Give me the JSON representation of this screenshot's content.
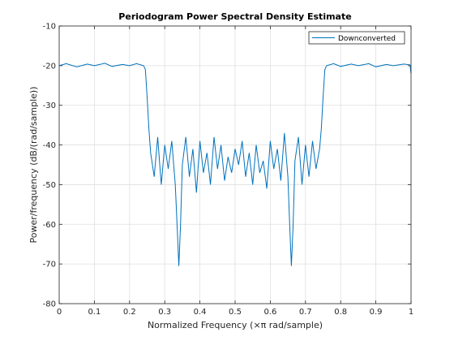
{
  "chart_data": {
    "type": "line",
    "title": "Periodogram Power Spectral Density Estimate",
    "xlabel": "Normalized Frequency  (×π rad/sample)",
    "ylabel": "Power/frequency (dB/(rad/sample))",
    "xlim": [
      0,
      1
    ],
    "ylim": [
      -80,
      -10
    ],
    "xticks": [
      "0",
      "0.1",
      "0.2",
      "0.3",
      "0.4",
      "0.5",
      "0.6",
      "0.7",
      "0.8",
      "0.9",
      "1"
    ],
    "yticks": [
      "-80",
      "-70",
      "-60",
      "-50",
      "-40",
      "-30",
      "-20",
      "-10"
    ],
    "grid": true,
    "legend_position": "top-right",
    "series": [
      {
        "name": "Downconverted",
        "color": "#0072bd",
        "x": [
          0,
          0.02,
          0.05,
          0.08,
          0.1,
          0.13,
          0.15,
          0.18,
          0.2,
          0.22,
          0.24,
          0.245,
          0.25,
          0.255,
          0.26,
          0.27,
          0.28,
          0.29,
          0.3,
          0.31,
          0.32,
          0.33,
          0.335,
          0.34,
          0.345,
          0.35,
          0.36,
          0.37,
          0.38,
          0.39,
          0.4,
          0.41,
          0.42,
          0.43,
          0.44,
          0.45,
          0.46,
          0.47,
          0.48,
          0.49,
          0.5,
          0.51,
          0.52,
          0.53,
          0.54,
          0.55,
          0.56,
          0.57,
          0.58,
          0.59,
          0.6,
          0.61,
          0.62,
          0.63,
          0.64,
          0.65,
          0.655,
          0.66,
          0.665,
          0.67,
          0.68,
          0.69,
          0.7,
          0.71,
          0.72,
          0.73,
          0.74,
          0.745,
          0.75,
          0.755,
          0.76,
          0.78,
          0.8,
          0.83,
          0.85,
          0.88,
          0.9,
          0.93,
          0.95,
          0.98,
          0.997,
          1
        ],
        "y": [
          -20,
          -19.5,
          -20.3,
          -19.6,
          -20,
          -19.4,
          -20.2,
          -19.7,
          -20,
          -19.5,
          -20,
          -21,
          -28,
          -36,
          -42,
          -48,
          -38,
          -50,
          -40,
          -46,
          -39,
          -50,
          -60,
          -70.5,
          -60,
          -45,
          -38,
          -48,
          -41,
          -52,
          -39,
          -47,
          -42,
          -50,
          -38,
          -46,
          -40,
          -49,
          -43,
          -47,
          -41,
          -45,
          -39,
          -48,
          -42,
          -50,
          -40,
          -47,
          -44,
          -51,
          -39,
          -46,
          -41,
          -49,
          -37,
          -48,
          -60,
          -70.5,
          -60,
          -44,
          -38,
          -50,
          -40,
          -48,
          -39,
          -46,
          -41,
          -36,
          -28,
          -21,
          -20,
          -19.5,
          -20.2,
          -19.6,
          -20,
          -19.5,
          -20.3,
          -19.7,
          -20,
          -19.6,
          -19.8,
          -22
        ]
      }
    ]
  }
}
